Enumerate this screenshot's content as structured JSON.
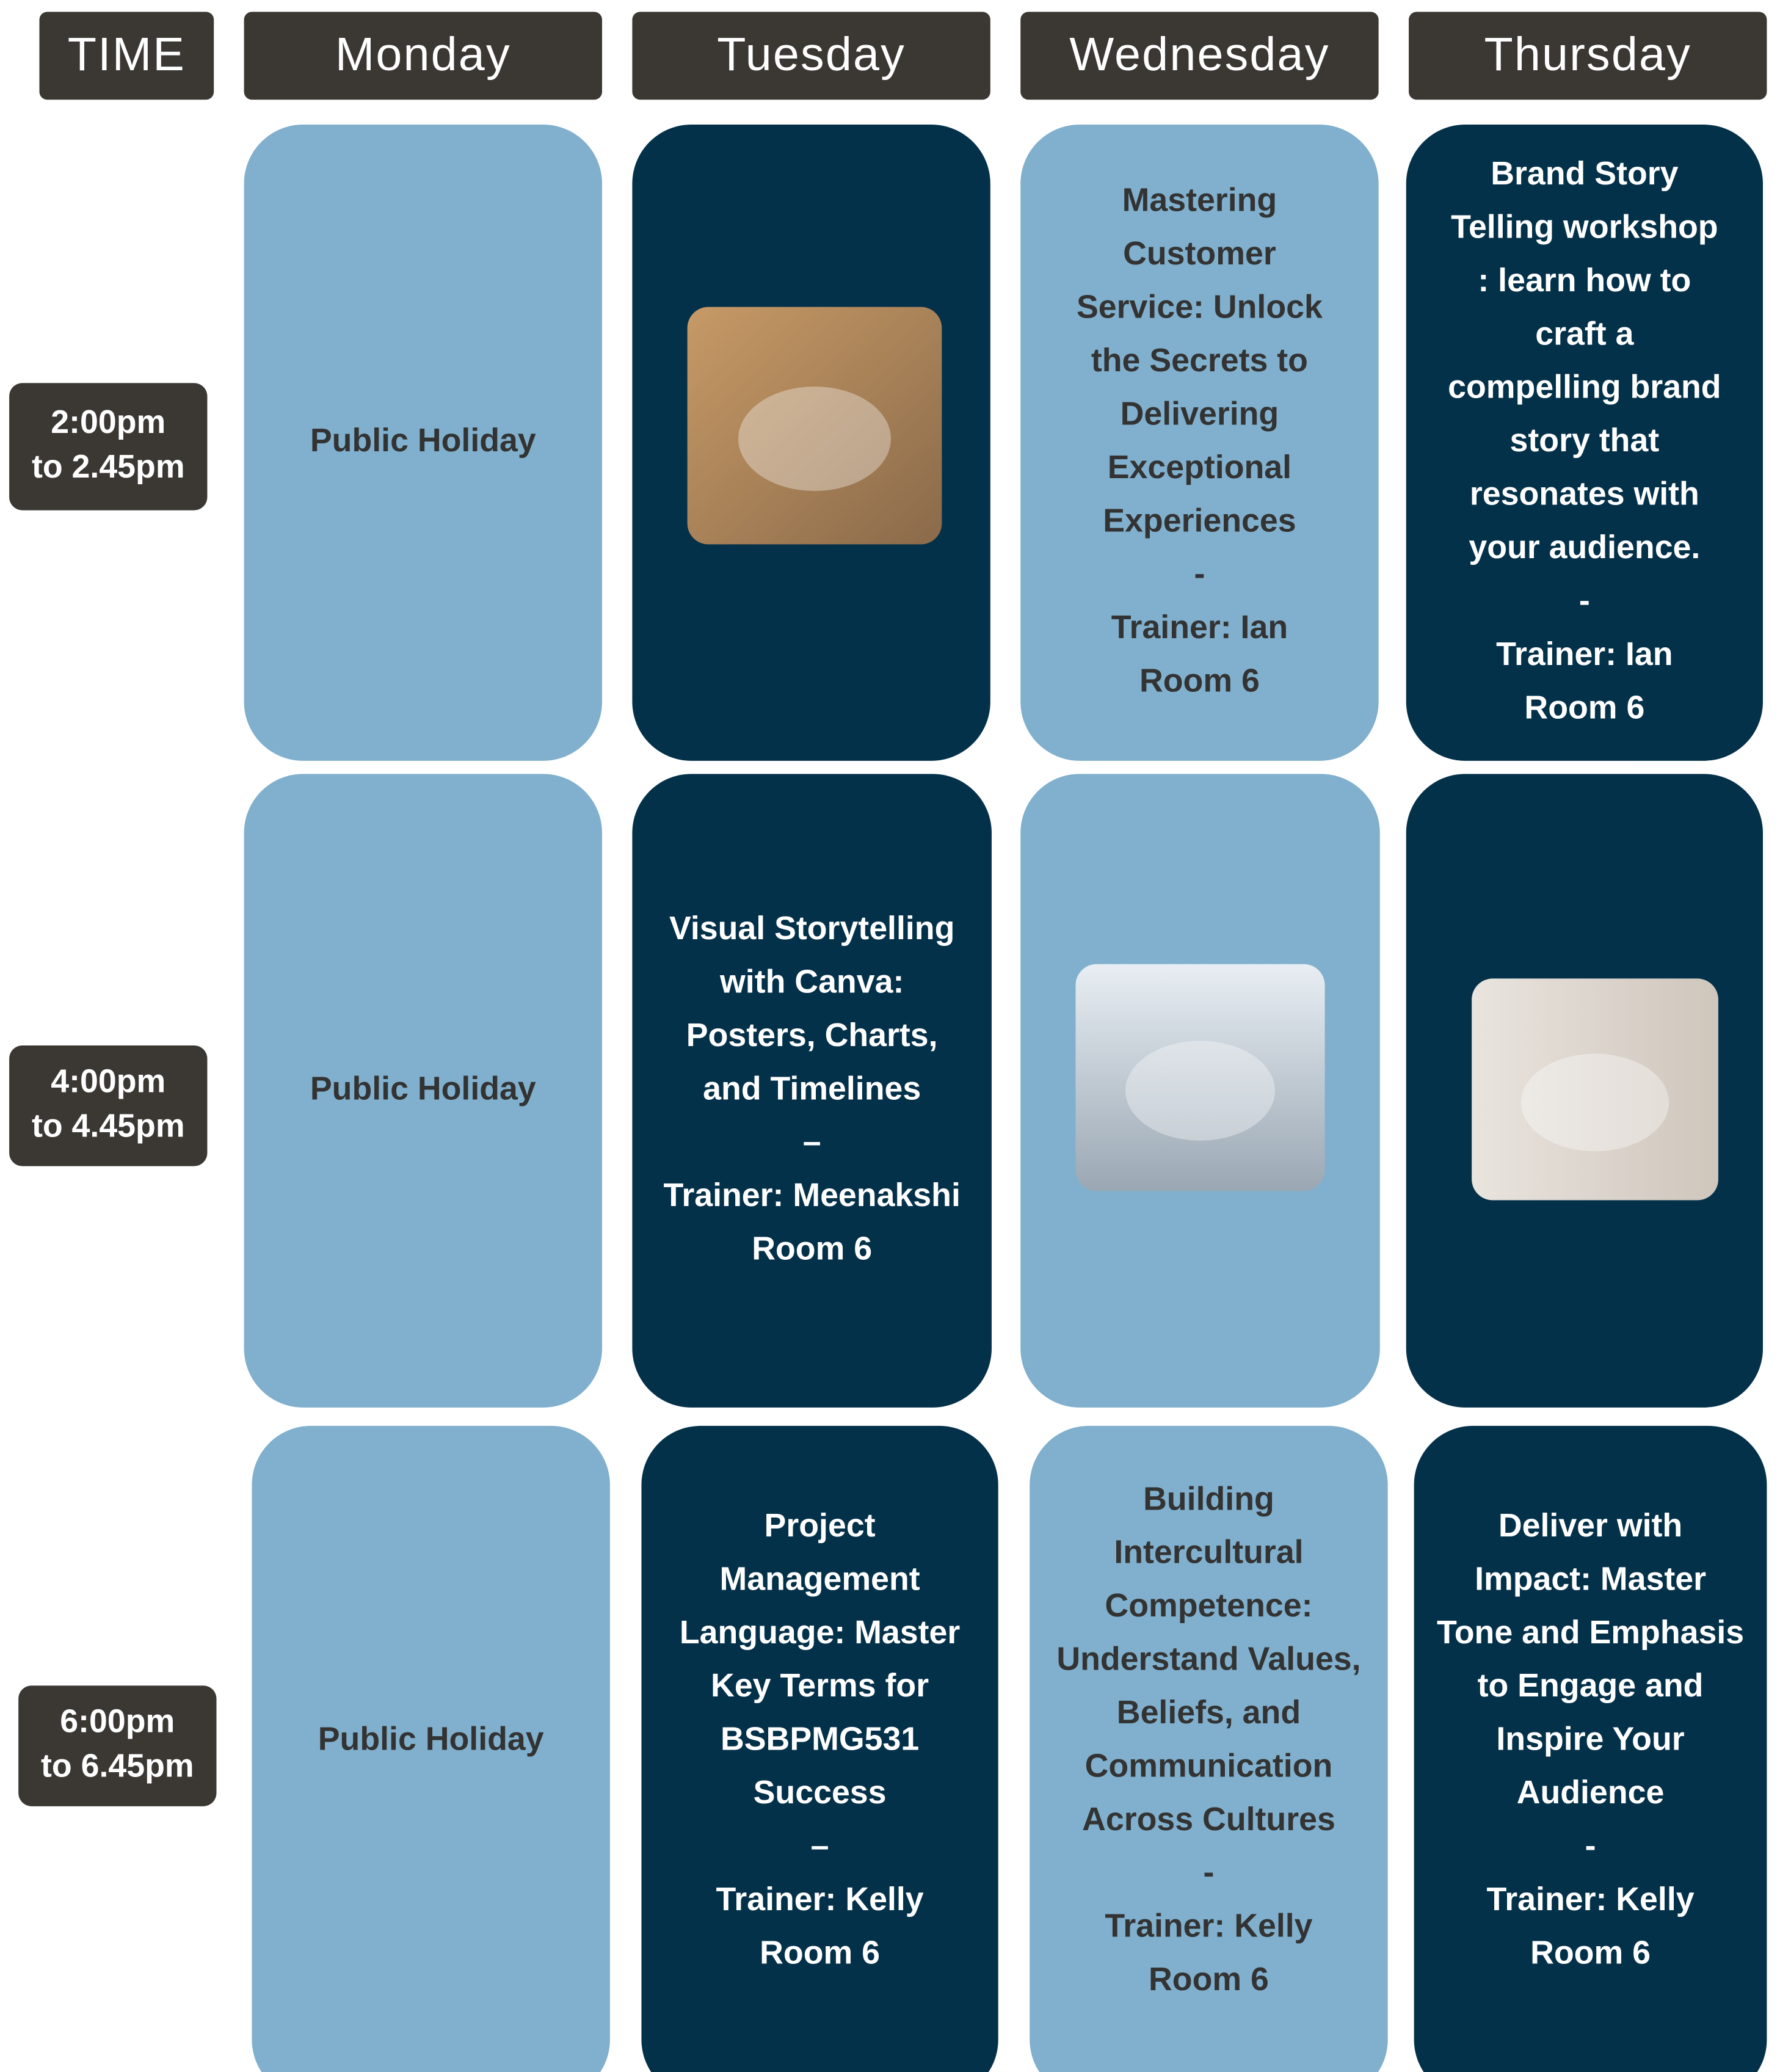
{
  "header": {
    "columns": [
      "TIME",
      "Monday",
      "Tuesday",
      "Wednesday",
      "Thursday"
    ]
  },
  "rows": [
    {
      "time": [
        "2:00pm",
        "to 2.45pm"
      ],
      "cells": {
        "Monday": {
          "lines": [
            "Public Holiday"
          ]
        },
        "Wednesday": {
          "lines": [
            "Mastering",
            "Customer",
            "Service: Unlock",
            "the Secrets to",
            "Delivering",
            "Exceptional",
            "Experiences",
            "-",
            "Trainer: Ian",
            "Room 6"
          ]
        },
        "Thursday": {
          "lines": [
            "Brand Story",
            "Telling workshop",
            ": learn how to",
            "craft a",
            "compelling brand",
            "story that",
            "resonates with",
            "your audience.",
            "-",
            "Trainer: Ian",
            "Room 6"
          ]
        }
      }
    },
    {
      "time": [
        "4:00pm",
        "to 4.45pm"
      ],
      "cells": {
        "Monday": {
          "lines": [
            "Public Holiday"
          ]
        },
        "Tuesday": {
          "lines": [
            "Visual Storytelling",
            "with Canva:",
            "Posters, Charts,",
            "and Timelines",
            "–",
            "Trainer: Meenakshi",
            "Room 6"
          ]
        }
      }
    },
    {
      "time": [
        "6:00pm",
        "to 6.45pm"
      ],
      "cells": {
        "Monday": {
          "lines": [
            "Public Holiday"
          ]
        },
        "Tuesday": {
          "lines": [
            "Project",
            "Management",
            "Language: Master",
            "Key Terms for",
            "BSBPMG531",
            "Success",
            "–",
            "Trainer: Kelly",
            "Room 6"
          ]
        },
        "Wednesday": {
          "lines": [
            "Building",
            "Intercultural",
            "Competence:",
            "Understand Values,",
            "Beliefs, and",
            "Communication",
            "Across Cultures",
            "-",
            "Trainer: Kelly",
            "Room 6"
          ]
        },
        "Thursday": {
          "lines": [
            "Deliver with",
            "Impact: Master",
            "Tone and Emphasis",
            "to Engage and",
            "Inspire Your",
            "Audience",
            "-",
            "Trainer: Kelly",
            "Room 6"
          ]
        }
      }
    }
  ]
}
